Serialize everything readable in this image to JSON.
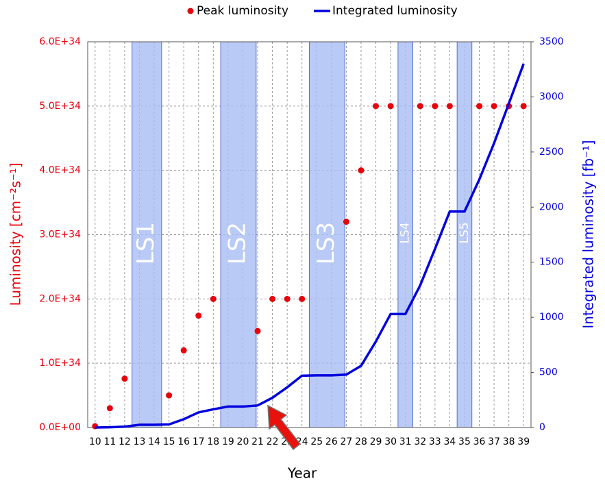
{
  "chart_data": {
    "type": "combo",
    "x": [
      10,
      11,
      12,
      13,
      14,
      15,
      16,
      17,
      18,
      19,
      20,
      21,
      22,
      23,
      24,
      25,
      26,
      27,
      28,
      29,
      30,
      31,
      32,
      33,
      34,
      35,
      36,
      37,
      38,
      39
    ],
    "xlim": [
      9.5,
      39.5
    ],
    "xticks": [
      10,
      11,
      12,
      13,
      14,
      15,
      16,
      17,
      18,
      19,
      20,
      21,
      22,
      23,
      24,
      25,
      26,
      27,
      28,
      29,
      30,
      31,
      32,
      33,
      34,
      35,
      36,
      37,
      38,
      39
    ],
    "xlabel": "Year",
    "ylabel": "Luminosity [cm⁻²s⁻¹]",
    "y2label": "Integrated luminosity [fb⁻¹]",
    "ylim": [
      0,
      6e+34
    ],
    "yticks": [
      {
        "value": 0,
        "label": "0.0E+00"
      },
      {
        "value": 1e+34,
        "label": "1.0E+34"
      },
      {
        "value": 2e+34,
        "label": "2.0E+34"
      },
      {
        "value": 3e+34,
        "label": "3.0E+34"
      },
      {
        "value": 4e+34,
        "label": "4.0E+34"
      },
      {
        "value": 5e+34,
        "label": "5.0E+34"
      },
      {
        "value": 6e+34,
        "label": "6.0E+34"
      }
    ],
    "y2lim": [
      0,
      3500
    ],
    "y2ticks": [
      0,
      500,
      1000,
      1500,
      2000,
      2500,
      3000,
      3500
    ],
    "grid": true,
    "legend": "top",
    "series": [
      {
        "name": "Peak luminosity",
        "type": "scatter",
        "color": "#e8000b",
        "values": [
          2e+32,
          3e+33,
          7.6e+33,
          null,
          null,
          5e+33,
          1.2e+34,
          1.74e+34,
          2e+34,
          null,
          null,
          1.5e+34,
          2e+34,
          2e+34,
          2e+34,
          null,
          null,
          3.2e+34,
          4e+34,
          5e+34,
          5e+34,
          null,
          5e+34,
          5e+34,
          5e+34,
          null,
          5e+34,
          5e+34,
          5e+34,
          5e+34
        ]
      },
      {
        "name": "Integrated luminosity",
        "type": "line",
        "color": "#0000dd",
        "axis": "y2",
        "values": [
          0,
          2,
          8,
          25,
          25,
          28,
          75,
          137,
          165,
          190,
          190,
          200,
          270,
          365,
          470,
          473,
          473,
          480,
          560,
          780,
          1030,
          1030,
          1290,
          1620,
          1960,
          1960,
          2250,
          2580,
          2940,
          3300
        ]
      }
    ],
    "shutdowns": [
      {
        "label": "LS1",
        "start": 12.5,
        "end": 14.5
      },
      {
        "label": "LS2",
        "start": 18.5,
        "end": 20.9
      },
      {
        "label": "LS3",
        "start": 24.5,
        "end": 26.9
      },
      {
        "label": "LS4",
        "start": 30.5,
        "end": 31.5
      },
      {
        "label": "LS5",
        "start": 34.5,
        "end": 35.5
      }
    ]
  }
}
